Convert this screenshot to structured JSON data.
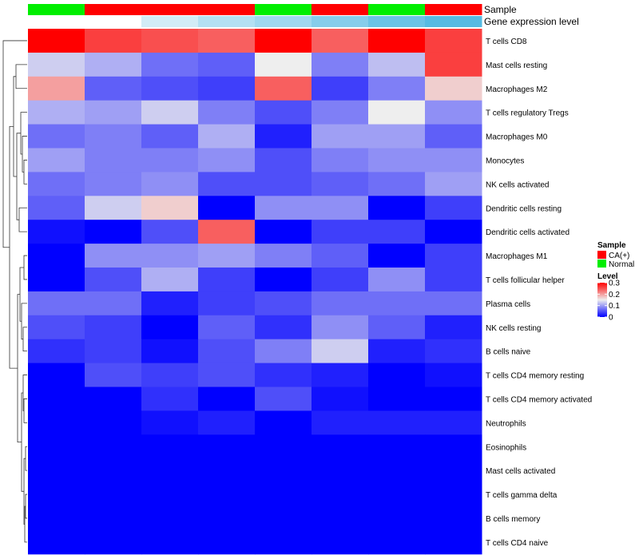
{
  "chart_data": {
    "type": "heatmap",
    "title": "",
    "annotations": {
      "sample_label": "Sample",
      "expression_label": "Gene expression level",
      "sample_colors": {
        "CA(+)": "#ff0000",
        "Normal": "#00ee00"
      },
      "samples": [
        "Normal",
        "CA(+)",
        "CA(+)",
        "CA(+)",
        "Normal",
        "CA(+)",
        "Normal",
        "CA(+)"
      ],
      "expression_colors": [
        "#ffffff",
        "#ffffff",
        "#d2ecf6",
        "#b4e0f2",
        "#a0d8ef",
        "#86cdeb",
        "#6cc3e6",
        "#56bbe3"
      ]
    },
    "rows": [
      "T cells CD8",
      "Mast cells resting",
      "Macrophages M2",
      "T cells regulatory  Tregs",
      "Macrophages M0",
      "Monocytes",
      "NK cells activated",
      "Dendritic cells resting",
      "Dendritic cells activated",
      "Macrophages M1",
      "T cells follicular helper",
      "Plasma cells",
      "NK cells resting",
      "B cells naive",
      "T cells CD4 memory resting",
      "T cells CD4 memory activated",
      "Neutrophils",
      "Eosinophils",
      "Mast cells activated",
      "T cells gamma delta",
      "B cells memory",
      "T cells CD4 naive"
    ],
    "values": [
      [
        0.3,
        0.26,
        0.25,
        0.24,
        0.3,
        0.24,
        0.3,
        0.26
      ],
      [
        0.13,
        0.11,
        0.07,
        0.06,
        0.15,
        0.08,
        0.12,
        0.26
      ],
      [
        0.2,
        0.06,
        0.05,
        0.04,
        0.24,
        0.04,
        0.08,
        0.17
      ],
      [
        0.11,
        0.1,
        0.13,
        0.08,
        0.05,
        0.08,
        0.15,
        0.09
      ],
      [
        0.07,
        0.08,
        0.06,
        0.11,
        0.02,
        0.1,
        0.1,
        0.06
      ],
      [
        0.1,
        0.08,
        0.08,
        0.09,
        0.05,
        0.08,
        0.09,
        0.09
      ],
      [
        0.07,
        0.08,
        0.09,
        0.05,
        0.05,
        0.06,
        0.07,
        0.1
      ],
      [
        0.06,
        0.13,
        0.17,
        0.0,
        0.09,
        0.09,
        0.0,
        0.04
      ],
      [
        0.01,
        0.0,
        0.05,
        0.24,
        0.0,
        0.04,
        0.04,
        0.0
      ],
      [
        0.0,
        0.09,
        0.09,
        0.1,
        0.08,
        0.06,
        0.0,
        0.04
      ],
      [
        0.0,
        0.05,
        0.11,
        0.04,
        0.0,
        0.04,
        0.09,
        0.04
      ],
      [
        0.07,
        0.07,
        0.02,
        0.04,
        0.05,
        0.07,
        0.07,
        0.07
      ],
      [
        0.05,
        0.04,
        0.0,
        0.06,
        0.03,
        0.09,
        0.06,
        0.02
      ],
      [
        0.03,
        0.04,
        0.01,
        0.05,
        0.08,
        0.13,
        0.02,
        0.03
      ],
      [
        0.0,
        0.05,
        0.04,
        0.05,
        0.03,
        0.02,
        0.0,
        0.01
      ],
      [
        0.0,
        0.0,
        0.03,
        0.0,
        0.05,
        0.01,
        0.0,
        0.0
      ],
      [
        0.0,
        0.0,
        0.01,
        0.02,
        0.0,
        0.02,
        0.02,
        0.02
      ],
      [
        0.0,
        0.0,
        0.0,
        0.0,
        0.0,
        0.0,
        0.0,
        0.0
      ],
      [
        0.0,
        0.0,
        0.0,
        0.0,
        0.0,
        0.0,
        0.0,
        0.0
      ],
      [
        0.0,
        0.0,
        0.0,
        0.0,
        0.0,
        0.0,
        0.0,
        0.0
      ],
      [
        0.0,
        0.0,
        0.0,
        0.0,
        0.0,
        0.0,
        0.0,
        0.0
      ],
      [
        0.0,
        0.0,
        0.0,
        0.0,
        0.0,
        0.0,
        0.0,
        0.0
      ]
    ],
    "color_scale": {
      "min": 0,
      "max": 0.3,
      "stops": [
        {
          "value": 0,
          "color": "#0000ff"
        },
        {
          "value": 0.15,
          "color": "#eeeeee"
        },
        {
          "value": 0.3,
          "color": "#ff0000"
        }
      ]
    },
    "legend": {
      "placement": "right",
      "sample_title": "Sample",
      "sample_items": [
        {
          "label": "CA(+)",
          "color": "#ff0000"
        },
        {
          "label": "Normal",
          "color": "#00ee00"
        }
      ],
      "level_title": "Level",
      "level_ticks": [
        {
          "value": 0.3,
          "label": "0.3"
        },
        {
          "value": 0.2,
          "label": "0.2"
        },
        {
          "value": 0.1,
          "label": "0.1"
        },
        {
          "value": 0,
          "label": "0"
        }
      ]
    }
  }
}
